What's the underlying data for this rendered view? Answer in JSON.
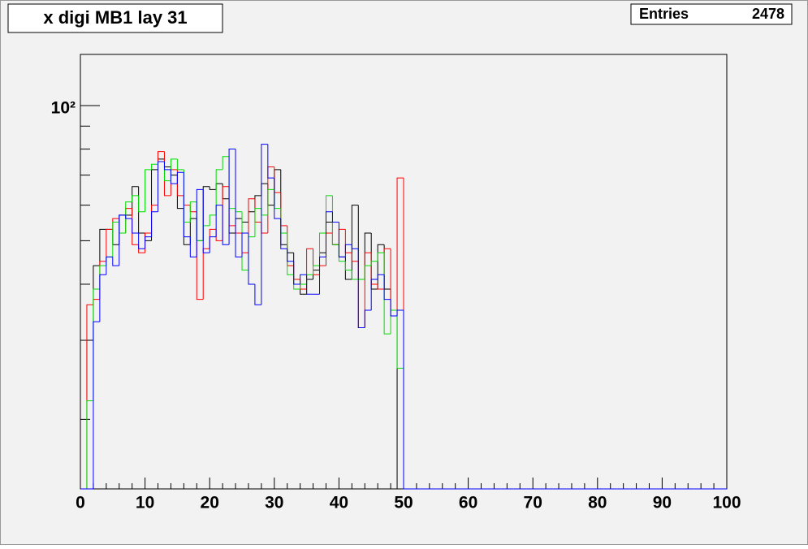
{
  "chart_data": {
    "type": "histogram",
    "title": "x digi MB1 lay 31",
    "entries_label": "Entries",
    "entries": 2478,
    "bins": [
      0,
      1,
      2,
      3,
      4,
      5,
      6,
      7,
      8,
      9,
      10,
      11,
      12,
      13,
      14,
      15,
      16,
      17,
      18,
      19,
      20,
      21,
      22,
      23,
      24,
      25,
      26,
      27,
      28,
      29,
      30,
      31,
      32,
      33,
      34,
      35,
      36,
      37,
      38,
      39,
      40,
      41,
      42,
      43,
      44,
      45,
      46,
      47,
      48,
      49,
      50,
      51,
      52,
      53,
      54,
      55,
      56,
      57,
      58,
      59,
      60,
      61,
      62,
      63,
      64,
      65,
      66,
      67,
      68,
      69,
      70,
      71,
      72,
      73,
      74,
      75,
      76,
      77,
      78,
      79,
      80,
      81,
      82,
      83,
      84,
      85,
      86,
      87,
      88,
      89,
      90,
      91,
      92,
      93,
      94,
      95,
      96,
      97,
      98,
      99,
      100
    ],
    "series": [
      {
        "color": "#000000",
        "values": [
          0,
          30,
          44,
          53,
          53,
          49,
          57,
          57,
          66,
          52,
          50,
          72,
          76,
          73,
          70,
          59,
          49,
          56,
          50,
          66,
          65,
          67,
          62,
          52,
          56,
          55,
          58,
          63,
          67,
          60,
          72,
          49,
          47,
          40,
          38,
          41,
          43,
          47,
          55,
          49,
          46,
          41,
          60,
          41,
          52,
          39,
          49,
          39,
          34,
          0,
          0,
          0,
          0,
          0,
          0,
          0,
          0,
          0,
          0,
          0,
          0,
          0,
          0,
          0,
          0,
          0,
          0,
          0,
          0,
          0,
          0,
          0,
          0,
          0,
          0,
          0,
          0,
          0,
          0,
          0,
          0,
          0,
          0,
          0,
          0,
          0,
          0,
          0,
          0,
          0,
          0,
          0,
          0,
          0,
          0,
          0,
          0,
          0,
          0,
          0
        ]
      },
      {
        "color": "#ff0000",
        "values": [
          0,
          36,
          37,
          45,
          53,
          56,
          52,
          59,
          49,
          47,
          52,
          60,
          79,
          63,
          72,
          63,
          60,
          58,
          37,
          48,
          53,
          50,
          66,
          54,
          52,
          47,
          62,
          55,
          52,
          73,
          64,
          54,
          44,
          41,
          39,
          48,
          42,
          44,
          52,
          49,
          53,
          47,
          45,
          32,
          47,
          40,
          39,
          48,
          34,
          69,
          0,
          0,
          0,
          0,
          0,
          0,
          0,
          0,
          0,
          0,
          0,
          0,
          0,
          0,
          0,
          0,
          0,
          0,
          0,
          0,
          0,
          0,
          0,
          0,
          0,
          0,
          0,
          0,
          0,
          0,
          0,
          0,
          0,
          0,
          0,
          0,
          0,
          0,
          0,
          0,
          0,
          0,
          0,
          0,
          0,
          0,
          0,
          0,
          0,
          0
        ]
      },
      {
        "color": "#00dd00",
        "values": [
          0,
          22,
          39,
          44,
          46,
          55,
          52,
          61,
          63,
          58,
          72,
          74,
          75,
          68,
          76,
          72,
          55,
          61,
          50,
          54,
          57,
          72,
          77,
          59,
          58,
          43,
          51,
          59,
          57,
          65,
          59,
          52,
          42,
          39,
          40,
          42,
          44,
          52,
          63,
          49,
          45,
          43,
          41,
          41,
          44,
          45,
          47,
          31,
          35,
          26,
          0,
          0,
          0,
          0,
          0,
          0,
          0,
          0,
          0,
          0,
          0,
          0,
          0,
          0,
          0,
          0,
          0,
          0,
          0,
          0,
          0,
          0,
          0,
          0,
          0,
          0,
          0,
          0,
          0,
          0,
          0,
          0,
          0,
          0,
          0,
          0,
          0,
          0,
          0,
          0,
          0,
          0,
          0,
          0,
          0,
          0,
          0,
          0,
          0,
          0
        ]
      },
      {
        "color": "#0000ff",
        "values": [
          0,
          0,
          33,
          42,
          46,
          44,
          57,
          56,
          52,
          48,
          51,
          58,
          75,
          72,
          67,
          71,
          51,
          46,
          65,
          47,
          51,
          60,
          49,
          80,
          46,
          52,
          40,
          36,
          82,
          69,
          56,
          48,
          45,
          40,
          42,
          38,
          38,
          46,
          58,
          55,
          46,
          49,
          48,
          32,
          35,
          41,
          42,
          37,
          34,
          35,
          0,
          0,
          0,
          0,
          0,
          0,
          0,
          0,
          0,
          0,
          0,
          0,
          0,
          0,
          0,
          0,
          0,
          0,
          0,
          0,
          0,
          0,
          0,
          0,
          0,
          0,
          0,
          0,
          0,
          0,
          0,
          0,
          0,
          0,
          0,
          0,
          0,
          0,
          0,
          0,
          0,
          0,
          0,
          0,
          0,
          0,
          0,
          0,
          0,
          0
        ]
      }
    ],
    "xlim": [
      0,
      100
    ],
    "xticks": [
      0,
      10,
      20,
      30,
      40,
      50,
      60,
      70,
      80,
      90,
      100
    ],
    "ylim": [
      14,
      130
    ],
    "yticks": [
      {
        "value": 100,
        "label": "10²"
      }
    ],
    "log_y": true
  }
}
